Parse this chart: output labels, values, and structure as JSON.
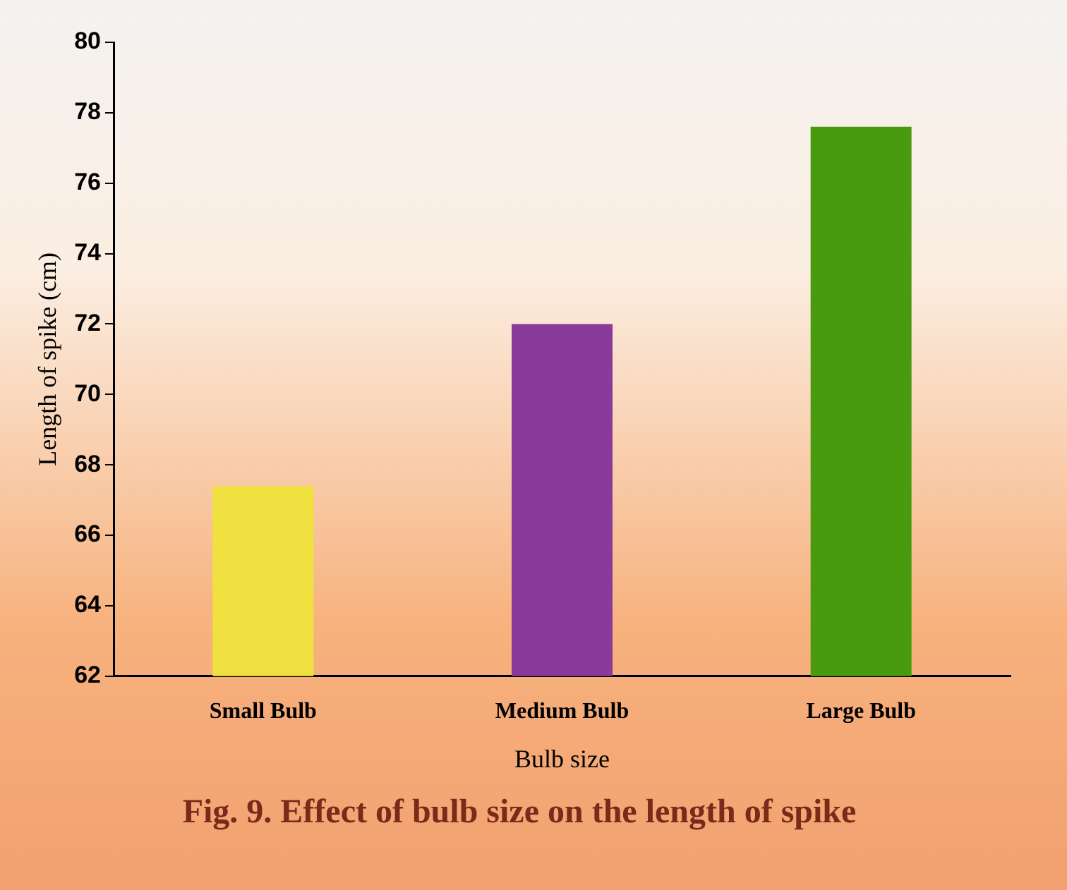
{
  "chart_data": {
    "type": "bar",
    "title": "Fig. 9. Effect of bulb size on the length of spike",
    "xlabel": "Bulb size",
    "ylabel": "Length of spike (cm)",
    "categories": [
      "Small Bulb",
      "Medium Bulb",
      "Large Bulb"
    ],
    "values": [
      67.4,
      72.0,
      77.6
    ],
    "colors": [
      "#f0e040",
      "#8a3a9a",
      "#4a9a10"
    ],
    "ylim": [
      62,
      80
    ],
    "yticks": [
      62,
      64,
      66,
      68,
      70,
      72,
      74,
      76,
      78,
      80
    ],
    "grid": false,
    "legend": false
  }
}
